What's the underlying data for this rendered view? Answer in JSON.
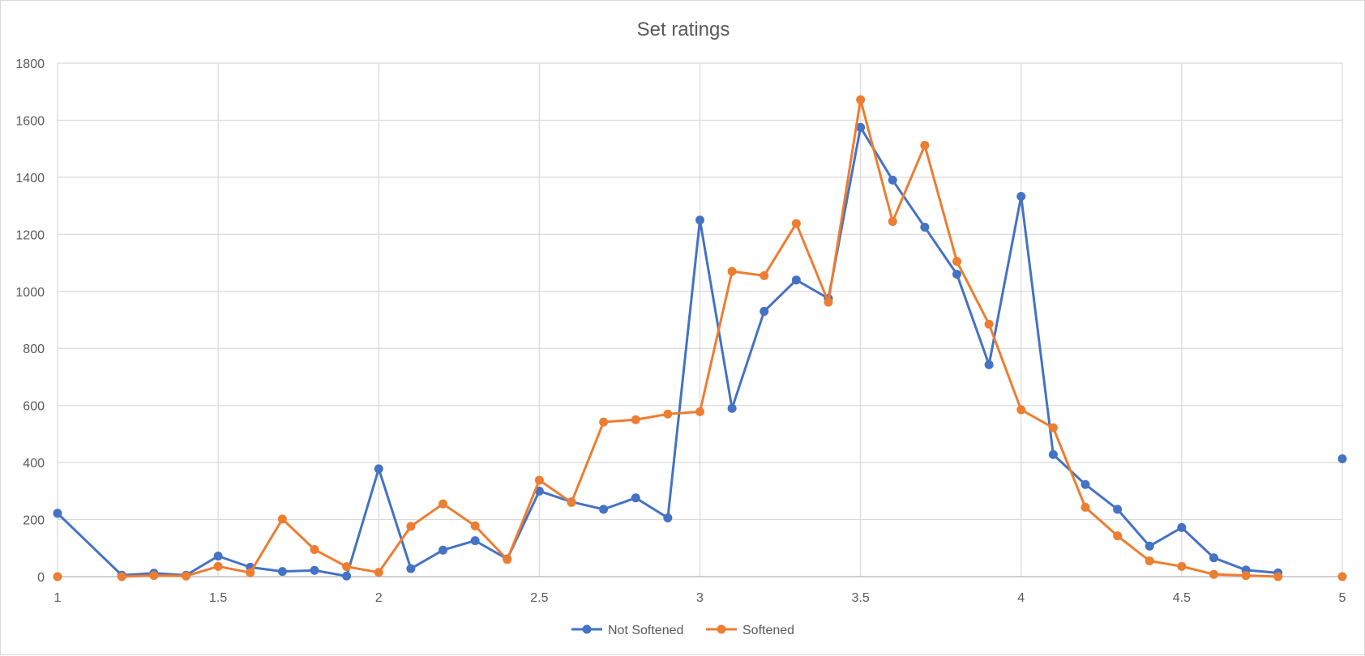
{
  "chart_data": {
    "type": "line",
    "title": "Set ratings",
    "xlabel": "",
    "ylabel": "",
    "xlim": [
      1,
      5
    ],
    "ylim": [
      0,
      1800
    ],
    "x_ticks": [
      "1",
      "1.5",
      "2",
      "2.5",
      "3",
      "3.5",
      "4",
      "4.5",
      "5"
    ],
    "y_ticks": [
      "0",
      "200",
      "400",
      "600",
      "800",
      "1000",
      "1200",
      "1400",
      "1600",
      "1800"
    ],
    "grid": true,
    "legend_position": "bottom",
    "series": [
      {
        "name": "Not Softened",
        "color": "#4472c4",
        "segments": [
          [
            [
              1,
              222
            ],
            [
              1.2,
              5
            ],
            [
              1.3,
              12
            ],
            [
              1.4,
              5
            ],
            [
              1.5,
              72
            ],
            [
              1.6,
              33
            ],
            [
              1.7,
              18
            ],
            [
              1.8,
              22
            ],
            [
              1.9,
              2
            ],
            [
              2,
              378
            ],
            [
              2.1,
              28
            ],
            [
              2.2,
              93
            ],
            [
              2.3,
              126
            ],
            [
              2.4,
              62
            ],
            [
              2.5,
              300
            ],
            [
              2.6,
              262
            ],
            [
              2.7,
              236
            ],
            [
              2.8,
              276
            ],
            [
              2.9,
              206
            ],
            [
              3,
              1250
            ],
            [
              3.1,
              590
            ],
            [
              3.2,
              930
            ],
            [
              3.3,
              1040
            ],
            [
              3.4,
              975
            ],
            [
              3.5,
              1575
            ],
            [
              3.6,
              1390
            ],
            [
              3.7,
              1225
            ],
            [
              3.8,
              1060
            ],
            [
              3.9,
              743
            ],
            [
              4,
              1333
            ],
            [
              4.1,
              428
            ],
            [
              4.2,
              323
            ],
            [
              4.3,
              236
            ],
            [
              4.4,
              107
            ],
            [
              4.5,
              172
            ],
            [
              4.6,
              66
            ],
            [
              4.7,
              23
            ],
            [
              4.8,
              13
            ]
          ],
          [
            [
              5,
              413
            ]
          ]
        ]
      },
      {
        "name": "Softened",
        "color": "#ed7d31",
        "segments": [
          [
            [
              1,
              0
            ]
          ],
          [
            [
              1.2,
              0
            ],
            [
              1.3,
              4
            ],
            [
              1.4,
              2
            ],
            [
              1.5,
              36
            ],
            [
              1.6,
              14
            ],
            [
              1.7,
              202
            ],
            [
              1.8,
              95
            ],
            [
              1.9,
              35
            ],
            [
              2,
              15
            ],
            [
              2.1,
              176
            ],
            [
              2.2,
              255
            ],
            [
              2.3,
              178
            ],
            [
              2.4,
              60
            ],
            [
              2.5,
              338
            ],
            [
              2.6,
              260
            ],
            [
              2.7,
              542
            ],
            [
              2.8,
              550
            ],
            [
              2.9,
              570
            ],
            [
              3,
              578
            ],
            [
              3.1,
              1070
            ],
            [
              3.2,
              1055
            ],
            [
              3.3,
              1238
            ],
            [
              3.4,
              962
            ],
            [
              3.5,
              1672
            ],
            [
              3.6,
              1245
            ],
            [
              3.7,
              1512
            ],
            [
              3.8,
              1105
            ],
            [
              3.9,
              885
            ],
            [
              4,
              585
            ],
            [
              4.1,
              522
            ],
            [
              4.2,
              243
            ],
            [
              4.3,
              143
            ],
            [
              4.4,
              55
            ],
            [
              4.5,
              36
            ],
            [
              4.6,
              8
            ],
            [
              4.7,
              4
            ],
            [
              4.8,
              0
            ]
          ],
          [
            [
              5,
              0
            ]
          ]
        ]
      }
    ]
  }
}
